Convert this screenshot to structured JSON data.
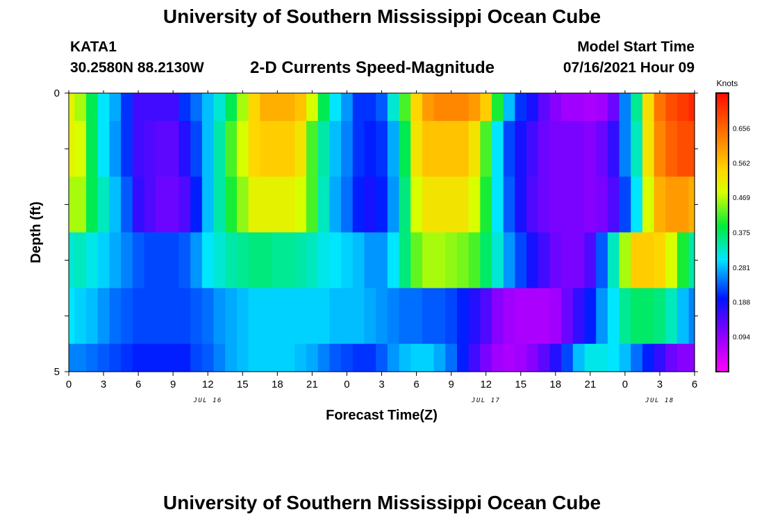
{
  "header": {
    "title": "University of Southern Mississippi Ocean Cube",
    "footer_title": "University of Southern Mississippi Ocean Cube",
    "station": "KATA1",
    "coordinates": "30.2580N  88.2130W",
    "subtitle": "2-D Currents Speed-Magnitude",
    "model_start_label": "Model Start Time",
    "model_start_value": "07/16/2021 Hour 09"
  },
  "chart_data": {
    "type": "heatmap",
    "xlabel": "Forecast Time(Z)",
    "ylabel": "Depth (ft)",
    "x_tick_labels": [
      "0",
      "3",
      "6",
      "9",
      "12",
      "15",
      "18",
      "21",
      "0",
      "3",
      "6",
      "9",
      "12",
      "15",
      "18",
      "21",
      "0",
      "3",
      "6"
    ],
    "date_labels": [
      {
        "text": "JUL 16",
        "at_tick": 4
      },
      {
        "text": "JUL 17",
        "at_tick": 12
      },
      {
        "text": "JUL 18",
        "at_tick": 17
      }
    ],
    "y_tick_labels": [
      {
        "text": "0",
        "depth": 0
      },
      {
        "text": "5",
        "depth": 5
      }
    ],
    "y_range": [
      0,
      5
    ],
    "x_range_hours": [
      0,
      54
    ],
    "colorbar": {
      "unit": "Knots",
      "tick_labels": [
        "0.656",
        "0.562",
        "0.469",
        "0.375",
        "0.281",
        "0.188",
        "0.094"
      ],
      "range": [
        0,
        0.75
      ]
    },
    "layer_depths": [
      0,
      0.5,
      1.5,
      2.5,
      3.5,
      4.5,
      5
    ],
    "hours": [
      0,
      1,
      2,
      3,
      4,
      5,
      6,
      7,
      8,
      9,
      10,
      11,
      12,
      13,
      14,
      15,
      16,
      17,
      18,
      19,
      20,
      21,
      22,
      23,
      24,
      25,
      26,
      27,
      28,
      29,
      30,
      31,
      32,
      33,
      34,
      35,
      36,
      37,
      38,
      39,
      40,
      41,
      42,
      43,
      44,
      45,
      46,
      47,
      48,
      49,
      50,
      51,
      52,
      53,
      54
    ],
    "speed_knots_by_layer": [
      [
        0.5,
        0.46,
        0.38,
        0.3,
        0.27,
        0.21,
        0.15,
        0.15,
        0.15,
        0.15,
        0.21,
        0.24,
        0.28,
        0.32,
        0.38,
        0.46,
        0.54,
        0.58,
        0.58,
        0.58,
        0.56,
        0.48,
        0.38,
        0.3,
        0.26,
        0.21,
        0.21,
        0.23,
        0.32,
        0.42,
        0.54,
        0.6,
        0.62,
        0.62,
        0.62,
        0.6,
        0.55,
        0.4,
        0.28,
        0.21,
        0.18,
        0.13,
        0.1,
        0.08,
        0.08,
        0.07,
        0.08,
        0.12,
        0.25,
        0.35,
        0.53,
        0.64,
        0.68,
        0.7,
        0.72
      ],
      [
        0.5,
        0.48,
        0.38,
        0.3,
        0.26,
        0.21,
        0.15,
        0.14,
        0.13,
        0.13,
        0.17,
        0.22,
        0.28,
        0.34,
        0.42,
        0.48,
        0.54,
        0.55,
        0.55,
        0.55,
        0.52,
        0.42,
        0.34,
        0.28,
        0.25,
        0.21,
        0.2,
        0.21,
        0.27,
        0.38,
        0.52,
        0.56,
        0.56,
        0.56,
        0.56,
        0.52,
        0.42,
        0.3,
        0.22,
        0.18,
        0.15,
        0.12,
        0.11,
        0.11,
        0.11,
        0.1,
        0.12,
        0.16,
        0.25,
        0.33,
        0.52,
        0.62,
        0.66,
        0.68,
        0.68
      ],
      [
        0.46,
        0.46,
        0.38,
        0.33,
        0.28,
        0.23,
        0.16,
        0.14,
        0.12,
        0.12,
        0.14,
        0.2,
        0.28,
        0.34,
        0.4,
        0.45,
        0.5,
        0.5,
        0.5,
        0.5,
        0.48,
        0.42,
        0.33,
        0.27,
        0.24,
        0.2,
        0.18,
        0.2,
        0.26,
        0.36,
        0.48,
        0.52,
        0.52,
        0.52,
        0.52,
        0.48,
        0.4,
        0.3,
        0.23,
        0.18,
        0.14,
        0.12,
        0.11,
        0.11,
        0.11,
        0.1,
        0.11,
        0.14,
        0.22,
        0.3,
        0.48,
        0.58,
        0.6,
        0.6,
        0.58
      ],
      [
        0.32,
        0.33,
        0.31,
        0.29,
        0.27,
        0.25,
        0.23,
        0.22,
        0.22,
        0.22,
        0.23,
        0.26,
        0.3,
        0.32,
        0.34,
        0.35,
        0.36,
        0.36,
        0.35,
        0.35,
        0.34,
        0.33,
        0.31,
        0.3,
        0.29,
        0.28,
        0.26,
        0.26,
        0.3,
        0.36,
        0.43,
        0.46,
        0.46,
        0.45,
        0.44,
        0.42,
        0.37,
        0.32,
        0.26,
        0.22,
        0.18,
        0.15,
        0.12,
        0.11,
        0.11,
        0.14,
        0.23,
        0.33,
        0.46,
        0.55,
        0.55,
        0.54,
        0.48,
        0.4,
        0.34
      ],
      [
        0.3,
        0.29,
        0.28,
        0.26,
        0.24,
        0.23,
        0.22,
        0.22,
        0.22,
        0.22,
        0.22,
        0.23,
        0.24,
        0.26,
        0.27,
        0.28,
        0.29,
        0.29,
        0.29,
        0.29,
        0.29,
        0.29,
        0.29,
        0.28,
        0.28,
        0.28,
        0.27,
        0.26,
        0.25,
        0.24,
        0.24,
        0.23,
        0.23,
        0.22,
        0.2,
        0.17,
        0.14,
        0.1,
        0.08,
        0.07,
        0.07,
        0.07,
        0.08,
        0.12,
        0.16,
        0.2,
        0.26,
        0.3,
        0.35,
        0.37,
        0.37,
        0.36,
        0.33,
        0.28,
        0.25
      ],
      [
        0.25,
        0.25,
        0.24,
        0.23,
        0.22,
        0.21,
        0.2,
        0.2,
        0.2,
        0.2,
        0.2,
        0.22,
        0.23,
        0.25,
        0.27,
        0.28,
        0.29,
        0.29,
        0.29,
        0.29,
        0.28,
        0.27,
        0.25,
        0.23,
        0.22,
        0.21,
        0.21,
        0.23,
        0.26,
        0.28,
        0.29,
        0.29,
        0.27,
        0.24,
        0.2,
        0.15,
        0.11,
        0.08,
        0.07,
        0.08,
        0.1,
        0.13,
        0.17,
        0.22,
        0.28,
        0.31,
        0.31,
        0.3,
        0.28,
        0.24,
        0.2,
        0.16,
        0.12,
        0.1,
        0.1
      ]
    ],
    "gridlines": false
  }
}
